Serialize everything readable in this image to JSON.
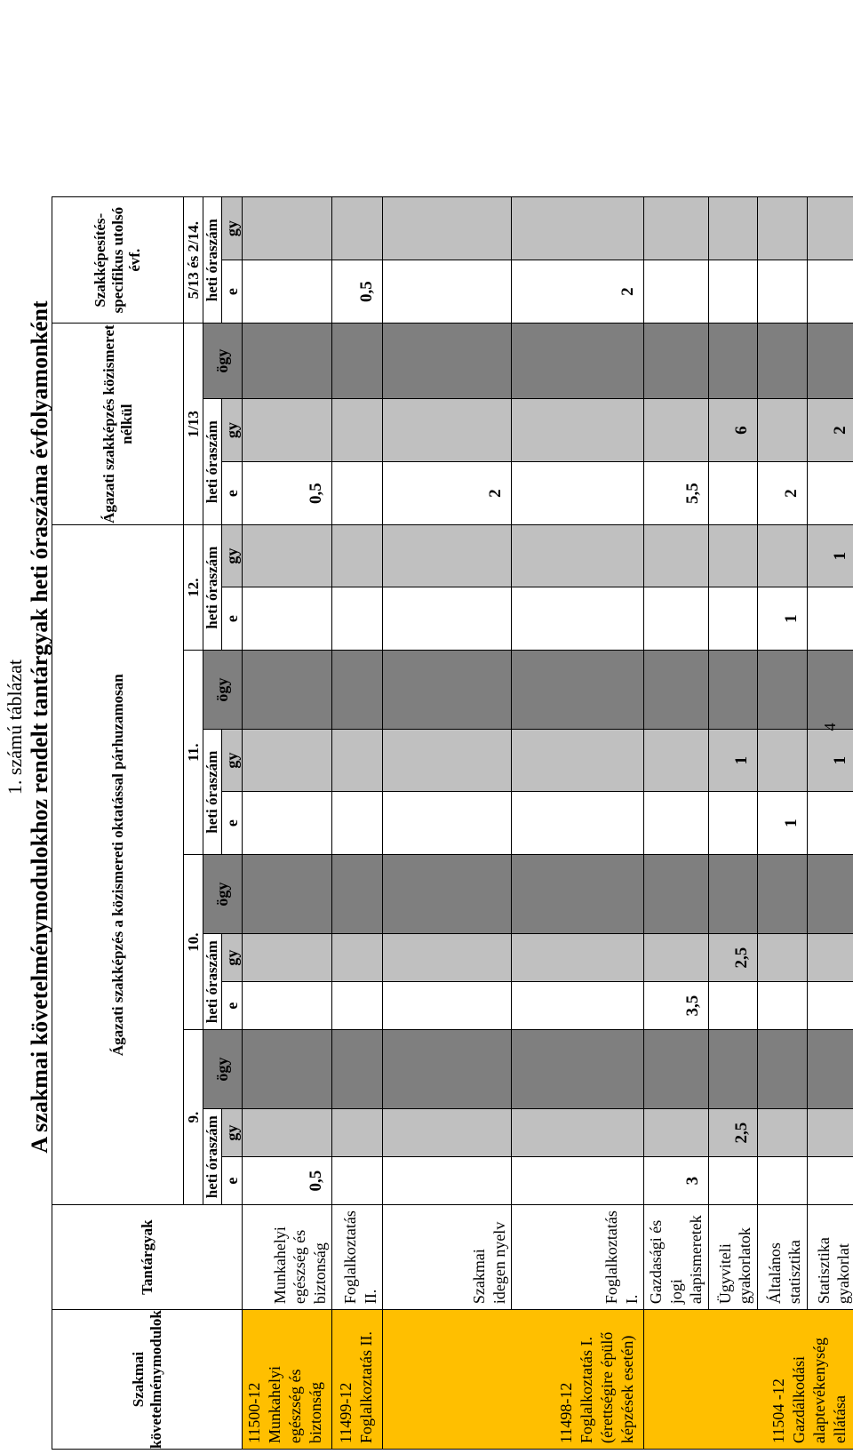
{
  "caption": {
    "table_number": "1. számú táblázat",
    "title": "A szakmai követelménymodulokhoz rendelt tantárgyak heti óraszáma évfolyamonként"
  },
  "header": {
    "modules_label": "Szakmai követelménymodulok",
    "subjects_label": "Tantárgyak",
    "groups": [
      "Ágazati szakképzés a közismereti oktatással párhuzamosan",
      "Ágazati szakképzés közismeret nélkül",
      "Szakképesítés-specifikus utolsó évf."
    ],
    "years": [
      "9.",
      "10.",
      "11.",
      "12.",
      "1/13",
      "5/13 és 2/14."
    ],
    "hours_label": "heti óraszám",
    "e_label": "e",
    "gy_label": "gy",
    "ogy_label": "ögy"
  },
  "modules": [
    {
      "name": "11500-12 Munkahelyi egészség és biztonság"
    },
    {
      "name": "11499-12 Foglalkoztatás II."
    },
    {
      "name": "11498-12 Foglalkoztatás I. (érettségire épülő képzések esetén)"
    },
    {
      "name": "11504 -12 Gazdálkodási alaptevékenység ellátása"
    }
  ],
  "rows": [
    {
      "subject": "Munkahelyi egészség és biztonság",
      "y9_e": "0,5",
      "y9_gy": "",
      "y10_e": "",
      "y10_gy": "",
      "y11_e": "",
      "y11_gy": "",
      "y12_e": "",
      "y12_gy": "",
      "y113_e": "0,5",
      "y113_gy": "",
      "ylast_e": "",
      "ylast_gy": ""
    },
    {
      "subject": "Foglalkoztatás II.",
      "y9_e": "",
      "y9_gy": "",
      "y10_e": "",
      "y10_gy": "",
      "y11_e": "",
      "y11_gy": "",
      "y12_e": "",
      "y12_gy": "",
      "y113_e": "",
      "y113_gy": "",
      "ylast_e": "0,5",
      "ylast_gy": ""
    },
    {
      "subject": "Szakmai idegen nyelv",
      "y9_e": "",
      "y9_gy": "",
      "y10_e": "",
      "y10_gy": "",
      "y11_e": "",
      "y11_gy": "",
      "y12_e": "",
      "y12_gy": "",
      "y113_e": "2",
      "y113_gy": "",
      "ylast_e": "",
      "ylast_gy": ""
    },
    {
      "subject": "Foglalkoztatás I.",
      "y9_e": "",
      "y9_gy": "",
      "y10_e": "",
      "y10_gy": "",
      "y11_e": "",
      "y11_gy": "",
      "y12_e": "",
      "y12_gy": "",
      "y113_e": "",
      "y113_gy": "",
      "ylast_e": "2",
      "ylast_gy": ""
    },
    {
      "subject": "Gazdasági és jogi alapismeretek",
      "y9_e": "3",
      "y9_gy": "",
      "y10_e": "3,5",
      "y10_gy": "",
      "y11_e": "",
      "y11_gy": "",
      "y12_e": "",
      "y12_gy": "",
      "y113_e": "5,5",
      "y113_gy": "",
      "ylast_e": "",
      "ylast_gy": ""
    },
    {
      "subject": "Ügyviteli gyakorlatok",
      "y9_e": "",
      "y9_gy": "2,5",
      "y10_e": "",
      "y10_gy": "2,5",
      "y11_e": "",
      "y11_gy": "1",
      "y12_e": "",
      "y12_gy": "",
      "y113_e": "",
      "y113_gy": "6",
      "ylast_e": "",
      "ylast_gy": ""
    },
    {
      "subject": "Általános statisztika",
      "y9_e": "",
      "y9_gy": "",
      "y10_e": "",
      "y10_gy": "",
      "y11_e": "1",
      "y11_gy": "",
      "y12_e": "1",
      "y12_gy": "",
      "y113_e": "2",
      "y113_gy": "",
      "ylast_e": "",
      "ylast_gy": ""
    },
    {
      "subject": "Statisztika gyakorlat",
      "y9_e": "",
      "y9_gy": "",
      "y10_e": "",
      "y10_gy": "",
      "y11_e": "",
      "y11_gy": "1",
      "y12_e": "",
      "y12_gy": "1",
      "y113_e": "",
      "y113_gy": "2",
      "ylast_e": "",
      "ylast_gy": ""
    }
  ],
  "page_number": "4"
}
